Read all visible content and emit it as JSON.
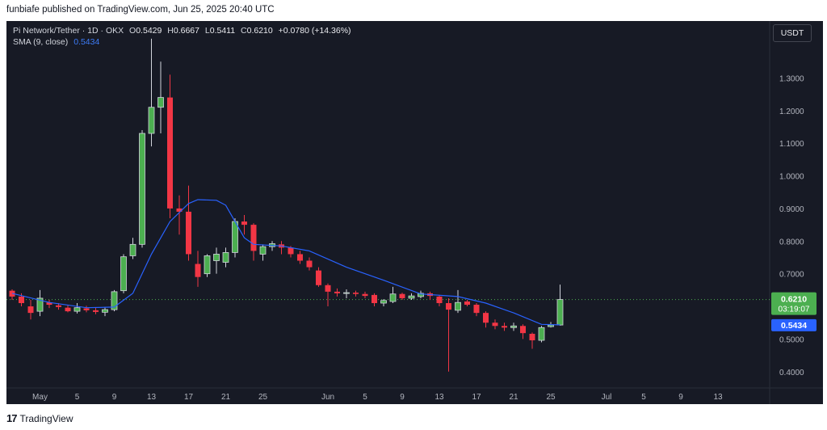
{
  "header": {
    "publisher_line": "funbiafe published on TradingView.com, Jun 25, 2025 20:40 UTC"
  },
  "legend": {
    "symbol": "Pi Network/Tether · 1D · OKX",
    "open_label": "O",
    "open": "0.5429",
    "high_label": "H",
    "high": "0.6667",
    "low_label": "L",
    "low": "0.5411",
    "close_label": "C",
    "close": "0.6210",
    "change": "+0.0780 (+14.36%)",
    "sma_label": "SMA (9, close)",
    "sma_value": "0.5434"
  },
  "currency_button": "USDT",
  "price_badge": {
    "price": "0.6210",
    "countdown": "03:19:07"
  },
  "sma_badge": "0.5434",
  "footer": {
    "logo_text": "TradingView",
    "logo_mark": "17"
  },
  "colors": {
    "up": "#4caf50",
    "down": "#f23645",
    "sma": "#2962ff",
    "background": "#171a25"
  },
  "chart_data": {
    "type": "candlestick",
    "symbol": "Pi Network/Tether",
    "interval": "1D",
    "y_ticks": [
      "1.3000",
      "1.2000",
      "1.1000",
      "1.0000",
      "0.9000",
      "0.8000",
      "0.7000",
      "0.5000",
      "0.4000"
    ],
    "ylim": [
      0.35,
      1.4
    ],
    "x_ticks": [
      {
        "label": "May",
        "day": 1
      },
      {
        "label": "5",
        "day": 5
      },
      {
        "label": "9",
        "day": 9
      },
      {
        "label": "13",
        "day": 13
      },
      {
        "label": "17",
        "day": 17
      },
      {
        "label": "21",
        "day": 21
      },
      {
        "label": "25",
        "day": 25
      },
      {
        "label": "Jun",
        "day": 32
      },
      {
        "label": "5",
        "day": 36
      },
      {
        "label": "9",
        "day": 40
      },
      {
        "label": "13",
        "day": 44
      },
      {
        "label": "17",
        "day": 48
      },
      {
        "label": "21",
        "day": 52
      },
      {
        "label": "25",
        "day": 56
      },
      {
        "label": "Jul",
        "day": 62
      },
      {
        "label": "5",
        "day": 66
      },
      {
        "label": "9",
        "day": 70
      },
      {
        "label": "13",
        "day": 74
      }
    ],
    "candles": [
      {
        "day": -2,
        "o": 0.648,
        "h": 0.652,
        "l": 0.62,
        "c": 0.63
      },
      {
        "day": -1,
        "o": 0.63,
        "h": 0.64,
        "l": 0.6,
        "c": 0.61
      },
      {
        "day": 0,
        "o": 0.6,
        "h": 0.62,
        "l": 0.56,
        "c": 0.58
      },
      {
        "day": 1,
        "o": 0.585,
        "h": 0.65,
        "l": 0.57,
        "c": 0.625
      },
      {
        "day": 2,
        "o": 0.612,
        "h": 0.62,
        "l": 0.595,
        "c": 0.605
      },
      {
        "day": 3,
        "o": 0.603,
        "h": 0.61,
        "l": 0.59,
        "c": 0.598
      },
      {
        "day": 4,
        "o": 0.596,
        "h": 0.605,
        "l": 0.582,
        "c": 0.585
      },
      {
        "day": 5,
        "o": 0.585,
        "h": 0.61,
        "l": 0.578,
        "c": 0.596
      },
      {
        "day": 6,
        "o": 0.594,
        "h": 0.602,
        "l": 0.582,
        "c": 0.588
      },
      {
        "day": 7,
        "o": 0.588,
        "h": 0.596,
        "l": 0.576,
        "c": 0.583
      },
      {
        "day": 8,
        "o": 0.582,
        "h": 0.596,
        "l": 0.57,
        "c": 0.59
      },
      {
        "day": 9,
        "o": 0.59,
        "h": 0.65,
        "l": 0.585,
        "c": 0.645
      },
      {
        "day": 10,
        "o": 0.648,
        "h": 0.76,
        "l": 0.64,
        "c": 0.752
      },
      {
        "day": 11,
        "o": 0.755,
        "h": 0.81,
        "l": 0.745,
        "c": 0.79
      },
      {
        "day": 12,
        "o": 0.79,
        "h": 1.14,
        "l": 0.78,
        "c": 1.13
      },
      {
        "day": 13,
        "o": 1.13,
        "h": 1.42,
        "l": 1.09,
        "c": 1.21
      },
      {
        "day": 14,
        "o": 1.21,
        "h": 1.35,
        "l": 1.13,
        "c": 1.24
      },
      {
        "day": 15,
        "o": 1.24,
        "h": 1.31,
        "l": 0.87,
        "c": 0.9
      },
      {
        "day": 16,
        "o": 0.9,
        "h": 0.94,
        "l": 0.82,
        "c": 0.89
      },
      {
        "day": 17,
        "o": 0.89,
        "h": 0.97,
        "l": 0.74,
        "c": 0.76
      },
      {
        "day": 18,
        "o": 0.73,
        "h": 0.77,
        "l": 0.66,
        "c": 0.69
      },
      {
        "day": 19,
        "o": 0.7,
        "h": 0.76,
        "l": 0.69,
        "c": 0.755
      },
      {
        "day": 20,
        "o": 0.74,
        "h": 0.78,
        "l": 0.7,
        "c": 0.76
      },
      {
        "day": 21,
        "o": 0.735,
        "h": 0.78,
        "l": 0.72,
        "c": 0.765
      },
      {
        "day": 22,
        "o": 0.765,
        "h": 0.87,
        "l": 0.75,
        "c": 0.86
      },
      {
        "day": 23,
        "o": 0.86,
        "h": 0.88,
        "l": 0.82,
        "c": 0.85
      },
      {
        "day": 24,
        "o": 0.85,
        "h": 0.855,
        "l": 0.74,
        "c": 0.77
      },
      {
        "day": 25,
        "o": 0.76,
        "h": 0.79,
        "l": 0.74,
        "c": 0.783
      },
      {
        "day": 26,
        "o": 0.783,
        "h": 0.8,
        "l": 0.77,
        "c": 0.792
      },
      {
        "day": 27,
        "o": 0.79,
        "h": 0.8,
        "l": 0.76,
        "c": 0.78
      },
      {
        "day": 28,
        "o": 0.78,
        "h": 0.785,
        "l": 0.75,
        "c": 0.76
      },
      {
        "day": 29,
        "o": 0.76,
        "h": 0.77,
        "l": 0.73,
        "c": 0.74
      },
      {
        "day": 30,
        "o": 0.74,
        "h": 0.75,
        "l": 0.71,
        "c": 0.72
      },
      {
        "day": 31,
        "o": 0.71,
        "h": 0.72,
        "l": 0.66,
        "c": 0.665
      },
      {
        "day": 32,
        "o": 0.665,
        "h": 0.67,
        "l": 0.6,
        "c": 0.645
      },
      {
        "day": 33,
        "o": 0.645,
        "h": 0.655,
        "l": 0.63,
        "c": 0.64
      },
      {
        "day": 34,
        "o": 0.64,
        "h": 0.652,
        "l": 0.625,
        "c": 0.642
      },
      {
        "day": 35,
        "o": 0.642,
        "h": 0.648,
        "l": 0.63,
        "c": 0.638
      },
      {
        "day": 36,
        "o": 0.638,
        "h": 0.645,
        "l": 0.625,
        "c": 0.632
      },
      {
        "day": 37,
        "o": 0.635,
        "h": 0.64,
        "l": 0.6,
        "c": 0.61
      },
      {
        "day": 38,
        "o": 0.61,
        "h": 0.622,
        "l": 0.6,
        "c": 0.618
      },
      {
        "day": 39,
        "o": 0.615,
        "h": 0.66,
        "l": 0.61,
        "c": 0.638
      },
      {
        "day": 40,
        "o": 0.638,
        "h": 0.642,
        "l": 0.62,
        "c": 0.625
      },
      {
        "day": 41,
        "o": 0.625,
        "h": 0.64,
        "l": 0.62,
        "c": 0.632
      },
      {
        "day": 42,
        "o": 0.63,
        "h": 0.648,
        "l": 0.625,
        "c": 0.64
      },
      {
        "day": 43,
        "o": 0.64,
        "h": 0.645,
        "l": 0.62,
        "c": 0.632
      },
      {
        "day": 44,
        "o": 0.63,
        "h": 0.635,
        "l": 0.6,
        "c": 0.61
      },
      {
        "day": 45,
        "o": 0.61,
        "h": 0.625,
        "l": 0.4,
        "c": 0.59
      },
      {
        "day": 46,
        "o": 0.588,
        "h": 0.65,
        "l": 0.58,
        "c": 0.612
      },
      {
        "day": 47,
        "o": 0.615,
        "h": 0.62,
        "l": 0.6,
        "c": 0.605
      },
      {
        "day": 48,
        "o": 0.605,
        "h": 0.61,
        "l": 0.57,
        "c": 0.58
      },
      {
        "day": 49,
        "o": 0.58,
        "h": 0.585,
        "l": 0.535,
        "c": 0.55
      },
      {
        "day": 50,
        "o": 0.55,
        "h": 0.56,
        "l": 0.53,
        "c": 0.54
      },
      {
        "day": 51,
        "o": 0.54,
        "h": 0.55,
        "l": 0.525,
        "c": 0.535
      },
      {
        "day": 52,
        "o": 0.535,
        "h": 0.55,
        "l": 0.525,
        "c": 0.54
      },
      {
        "day": 53,
        "o": 0.54,
        "h": 0.545,
        "l": 0.5,
        "c": 0.518
      },
      {
        "day": 54,
        "o": 0.516,
        "h": 0.52,
        "l": 0.47,
        "c": 0.496
      },
      {
        "day": 55,
        "o": 0.496,
        "h": 0.54,
        "l": 0.49,
        "c": 0.535
      },
      {
        "day": 56,
        "o": 0.538,
        "h": 0.552,
        "l": 0.535,
        "c": 0.543
      },
      {
        "day": 57,
        "o": 0.5429,
        "h": 0.6667,
        "l": 0.5411,
        "c": 0.621
      }
    ],
    "sma": {
      "name": "SMA (9, close)",
      "last": 0.5434,
      "points": [
        {
          "day": -2,
          "v": 0.64
        },
        {
          "day": 2,
          "v": 0.612
        },
        {
          "day": 6,
          "v": 0.596
        },
        {
          "day": 9,
          "v": 0.598
        },
        {
          "day": 11,
          "v": 0.64
        },
        {
          "day": 13,
          "v": 0.76
        },
        {
          "day": 15,
          "v": 0.86
        },
        {
          "day": 17,
          "v": 0.915
        },
        {
          "day": 18,
          "v": 0.927
        },
        {
          "day": 20,
          "v": 0.925
        },
        {
          "day": 21,
          "v": 0.91
        },
        {
          "day": 22,
          "v": 0.86
        },
        {
          "day": 23,
          "v": 0.81
        },
        {
          "day": 24,
          "v": 0.79
        },
        {
          "day": 27,
          "v": 0.785
        },
        {
          "day": 30,
          "v": 0.77
        },
        {
          "day": 34,
          "v": 0.72
        },
        {
          "day": 38,
          "v": 0.68
        },
        {
          "day": 42,
          "v": 0.638
        },
        {
          "day": 46,
          "v": 0.63
        },
        {
          "day": 49,
          "v": 0.61
        },
        {
          "day": 52,
          "v": 0.58
        },
        {
          "day": 55,
          "v": 0.545
        },
        {
          "day": 57,
          "v": 0.5434
        }
      ]
    }
  }
}
